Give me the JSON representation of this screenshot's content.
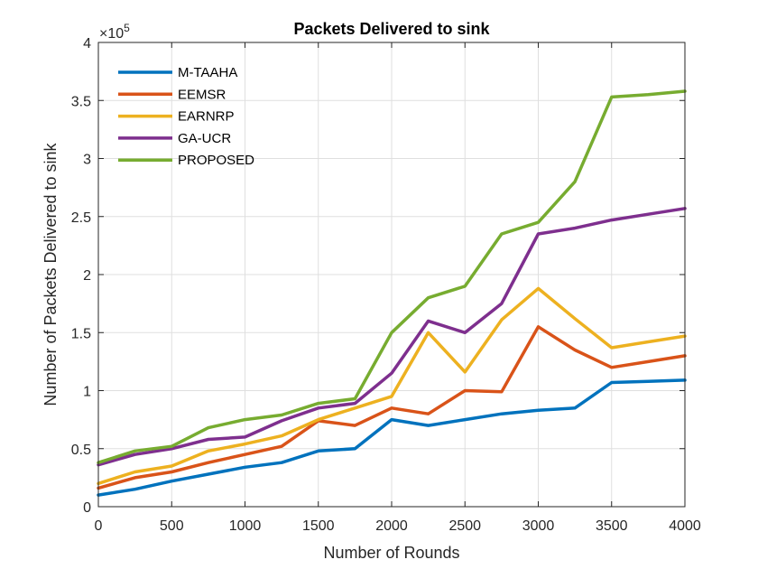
{
  "chart_data": {
    "type": "line",
    "title": "Packets Delivered to sink",
    "xlabel": "Number of Rounds",
    "ylabel": "Number of Packets Delivered to sink",
    "y_exponent_label": "×10",
    "y_exponent_power": "5",
    "xlim": [
      0,
      4000
    ],
    "ylim": [
      0,
      4
    ],
    "x_ticks": [
      "0",
      "500",
      "1000",
      "1500",
      "2000",
      "2500",
      "3000",
      "3500",
      "4000"
    ],
    "y_ticks": [
      "0",
      "0.5",
      "1",
      "1.5",
      "2",
      "2.5",
      "3",
      "3.5",
      "4"
    ],
    "grid": true,
    "legend_position": "top-left",
    "x": [
      0,
      250,
      500,
      750,
      1000,
      1250,
      1500,
      1750,
      2000,
      2250,
      2500,
      2750,
      3000,
      3250,
      3500,
      3750,
      4000
    ],
    "series": [
      {
        "name": "M-TAAHA",
        "color": "#0072BD",
        "values": [
          0.1,
          0.15,
          0.22,
          0.28,
          0.34,
          0.38,
          0.48,
          0.5,
          0.75,
          0.7,
          0.75,
          0.8,
          0.83,
          0.85,
          1.07,
          1.08,
          1.09
        ]
      },
      {
        "name": "EEMSR",
        "color": "#D95319",
        "values": [
          0.16,
          0.25,
          0.3,
          0.38,
          0.45,
          0.52,
          0.74,
          0.7,
          0.85,
          0.8,
          1.0,
          0.99,
          1.55,
          1.35,
          1.2,
          1.25,
          1.3
        ]
      },
      {
        "name": "EARNRP",
        "color": "#EDB120",
        "values": [
          0.2,
          0.3,
          0.35,
          0.48,
          0.54,
          0.61,
          0.75,
          0.85,
          0.95,
          1.5,
          1.16,
          1.61,
          1.88,
          1.62,
          1.37,
          1.42,
          1.47
        ]
      },
      {
        "name": "GA-UCR",
        "color": "#7E2F8E",
        "values": [
          0.36,
          0.45,
          0.5,
          0.58,
          0.6,
          0.74,
          0.85,
          0.89,
          1.15,
          1.6,
          1.5,
          1.75,
          2.35,
          2.4,
          2.47,
          2.52,
          2.57
        ]
      },
      {
        "name": "PROPOSED",
        "color": "#77AC30",
        "values": [
          0.38,
          0.48,
          0.52,
          0.68,
          0.75,
          0.79,
          0.89,
          0.93,
          1.5,
          1.8,
          1.9,
          2.35,
          2.45,
          2.8,
          3.53,
          3.55,
          3.58
        ]
      }
    ]
  }
}
